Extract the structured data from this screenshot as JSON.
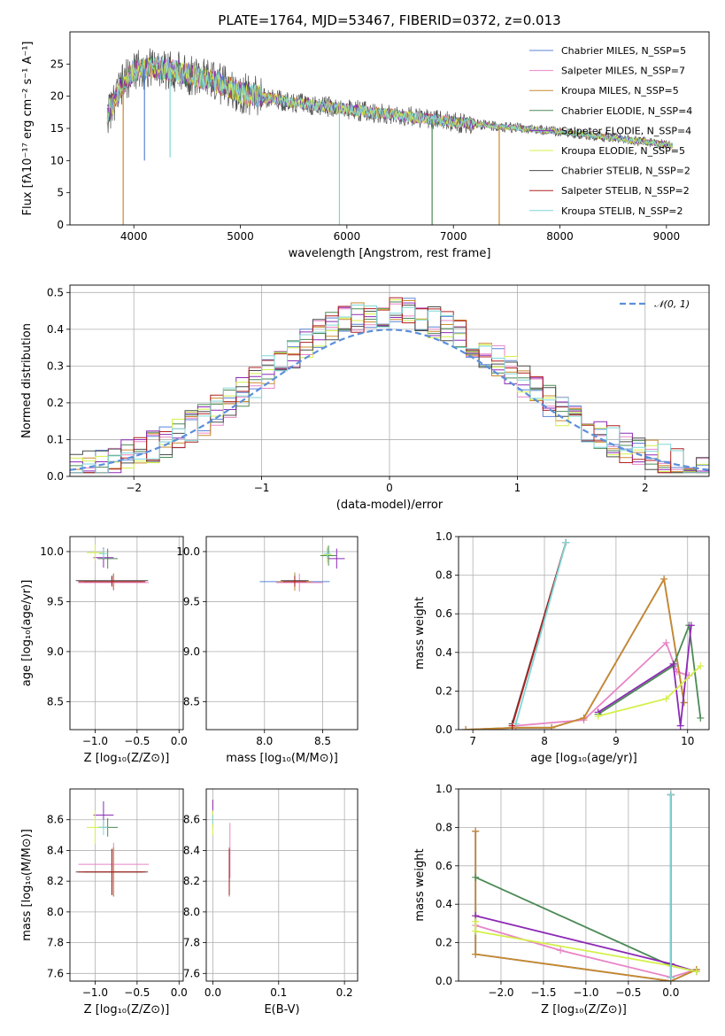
{
  "title": "PLATE=1764, MJD=53467, FIBERID=0372, z=0.013",
  "series_colors": [
    "#5b83d6",
    "#e885c7",
    "#c9892d",
    "#4c8a56",
    "#8d2ab5",
    "#d4f04a",
    "#4d4d4d",
    "#b02020",
    "#7fd6d6"
  ],
  "chart_data": [
    {
      "id": "spectrum",
      "type": "line",
      "xlabel": "wavelength [Angstrom, rest frame]",
      "ylabel": "Flux [fλ10⁻¹⁷ erg cm⁻² s⁻¹ A⁻¹]",
      "xlim": [
        3400,
        9400
      ],
      "ylim": [
        0,
        30
      ],
      "xticks": [
        4000,
        5000,
        6000,
        7000,
        8000,
        9000
      ],
      "yticks": [
        0,
        5,
        10,
        15,
        20,
        25
      ],
      "grid": false,
      "legend_position": "top-right",
      "series": [
        {
          "name": "Chabrier MILES, N_SSP=5"
        },
        {
          "name": "Salpeter MILES, N_SSP=7"
        },
        {
          "name": "Kroupa MILES, N_SSP=5"
        },
        {
          "name": "Chabrier ELODIE, N_SSP=4"
        },
        {
          "name": "Salpeter ELODIE, N_SSP=4"
        },
        {
          "name": "Kroupa ELODIE, N_SSP=5"
        },
        {
          "name": "Chabrier STELIB, N_SSP=2"
        },
        {
          "name": "Salpeter STELIB, N_SSP=2"
        },
        {
          "name": "Kroupa STELIB, N_SSP=2"
        }
      ],
      "continuum": {
        "x": [
          3750,
          3900,
          4000,
          4200,
          4500,
          4800,
          5000,
          5500,
          6000,
          6500,
          7000,
          7500,
          8000,
          8500,
          9000,
          9100
        ],
        "y": [
          17,
          22,
          24,
          24.5,
          23.5,
          22,
          20.5,
          19,
          18,
          17,
          16,
          15.2,
          14.5,
          13.5,
          12.5,
          12
        ]
      },
      "absorption_dips": [
        {
          "x": 3900,
          "y": 0
        },
        {
          "x": 4100,
          "y": 10
        },
        {
          "x": 4340,
          "y": 10.5
        },
        {
          "x": 5930,
          "y": 0
        },
        {
          "x": 6800,
          "y": 0
        },
        {
          "x": 7430,
          "y": 0
        }
      ]
    },
    {
      "id": "residuals",
      "type": "step-histogram",
      "xlabel": "(data-model)/error",
      "ylabel": "Normed distribution",
      "xlim": [
        -2.5,
        2.5
      ],
      "ylim": [
        0,
        0.52
      ],
      "xticks": [
        -2,
        -1,
        0,
        1,
        2
      ],
      "yticks": [
        0.0,
        0.1,
        0.2,
        0.3,
        0.4,
        0.5
      ],
      "grid": true,
      "legend_position": "top-right",
      "legend": "𝒩(0, 1)",
      "bins": {
        "start": -2.5,
        "width": 0.1
      }
    },
    {
      "id": "age-vs-Z",
      "type": "errorbar",
      "xlabel": "Z [log₁₀(Z/Z⊙)]",
      "ylabel": "age  [log₁₀(age/yr)]",
      "xlim": [
        -1.3,
        0.05
      ],
      "ylim": [
        8.22,
        10.15
      ],
      "xticks": [
        -1.0,
        -0.5,
        0.0
      ],
      "yticks": [
        8.5,
        9.0,
        9.5,
        10.0
      ],
      "grid": true,
      "points": [
        {
          "x": -0.78,
          "y": 9.7,
          "xerr": 0.35,
          "yerr": 0.08
        },
        {
          "x": -0.78,
          "y": 9.69,
          "xerr": 0.42,
          "yerr": 0.08
        },
        {
          "x": -0.78,
          "y": 9.7,
          "xerr": 0.35,
          "yerr": 0.08
        },
        {
          "x": -0.85,
          "y": 9.93,
          "xerr": 0.12,
          "yerr": 0.1
        },
        {
          "x": -0.9,
          "y": 9.94,
          "xerr": 0.12,
          "yerr": 0.1
        },
        {
          "x": -1.0,
          "y": 9.99,
          "xerr": 0.1,
          "yerr": 0.08
        },
        {
          "x": -0.8,
          "y": 9.71,
          "xerr": 0.43,
          "yerr": 0.05
        },
        {
          "x": -0.8,
          "y": 9.7,
          "xerr": 0.4,
          "yerr": 0.05
        },
        {
          "x": -0.9,
          "y": 9.98,
          "xerr": 0.05,
          "yerr": 0.05
        }
      ]
    },
    {
      "id": "age-vs-mass",
      "type": "errorbar",
      "xlabel": "mass [log₁₀(M/M⊙)]",
      "ylabel": "",
      "xlim": [
        7.5,
        8.8
      ],
      "ylim": [
        8.22,
        10.15
      ],
      "xticks": [
        8.0,
        8.5
      ],
      "yticks": [
        8.5,
        9.0,
        9.5,
        10.0
      ],
      "grid": true,
      "points": [
        {
          "x": 8.26,
          "y": 9.7,
          "xerr": 0.3,
          "yerr": 0.09
        },
        {
          "x": 8.3,
          "y": 9.69,
          "xerr": 0.2,
          "yerr": 0.09
        },
        {
          "x": 8.26,
          "y": 9.7,
          "xerr": 0.15,
          "yerr": 0.09
        },
        {
          "x": 8.55,
          "y": 9.96,
          "xerr": 0.07,
          "yerr": 0.1
        },
        {
          "x": 8.62,
          "y": 9.93,
          "xerr": 0.07,
          "yerr": 0.1
        },
        {
          "x": 8.54,
          "y": 9.97,
          "xerr": 0.04,
          "yerr": 0.08
        },
        {
          "x": 8.26,
          "y": 9.71,
          "xerr": 0.12,
          "yerr": 0.05
        },
        {
          "x": 8.26,
          "y": 9.7,
          "xerr": 0.1,
          "yerr": 0.05
        },
        {
          "x": 8.54,
          "y": 9.98,
          "xerr": 0.03,
          "yerr": 0.05
        }
      ]
    },
    {
      "id": "massweight-vs-age",
      "type": "line",
      "xlabel": "age  [log₁₀(age/yr)]",
      "ylabel": "mass weight",
      "xlim": [
        6.8,
        10.3
      ],
      "ylim": [
        0.0,
        1.0
      ],
      "xticks": [
        7,
        8,
        9,
        10
      ],
      "yticks": [
        0.0,
        0.2,
        0.4,
        0.6,
        0.8,
        1.0
      ],
      "grid": true,
      "series": [
        {
          "x": [
            6.9,
            7.6,
            8.1,
            8.55,
            9.67,
            9.95
          ],
          "y": [
            0.0,
            0.01,
            0.01,
            0.06,
            0.78,
            0.14
          ]
        },
        {
          "x": [
            7.6,
            8.55,
            9.7,
            9.85,
            10.02
          ],
          "y": [
            0.02,
            0.05,
            0.45,
            0.3,
            0.28
          ]
        },
        {
          "x": [
            6.9,
            7.6,
            8.1,
            8.55,
            9.67,
            9.95
          ],
          "y": [
            0.0,
            0.01,
            0.01,
            0.06,
            0.78,
            0.14
          ]
        },
        {
          "x": [
            8.75,
            9.8,
            10.02,
            10.18
          ],
          "y": [
            0.08,
            0.33,
            0.54,
            0.06
          ]
        },
        {
          "x": [
            8.75,
            9.8,
            9.9,
            10.05
          ],
          "y": [
            0.09,
            0.34,
            0.02,
            0.54
          ]
        },
        {
          "x": [
            8.75,
            9.7,
            10.18
          ],
          "y": [
            0.07,
            0.16,
            0.33
          ]
        },
        {
          "x": [
            7.55,
            8.3
          ],
          "y": [
            0.03,
            0.97
          ]
        },
        {
          "x": [
            7.55,
            8.3
          ],
          "y": [
            0.02,
            0.97
          ]
        },
        {
          "x": [
            7.6,
            8.3
          ],
          "y": [
            0.03,
            0.97
          ]
        }
      ]
    },
    {
      "id": "mass-vs-Z",
      "type": "errorbar",
      "xlabel": "Z [log₁₀(Z/Z⊙)]",
      "ylabel": "mass [log₁₀(M/M⊙)]",
      "xlim": [
        -1.3,
        0.05
      ],
      "ylim": [
        7.55,
        8.8
      ],
      "xticks": [
        -1.0,
        -0.5,
        0.0
      ],
      "yticks": [
        7.6,
        7.8,
        8.0,
        8.2,
        8.4,
        8.6
      ],
      "grid": true,
      "points": [
        {
          "x": -0.78,
          "y": 8.26,
          "xerr": 0.35,
          "yerr": 0.16
        },
        {
          "x": -0.78,
          "y": 8.31,
          "xerr": 0.42,
          "yerr": 0.14
        },
        {
          "x": -0.78,
          "y": 8.26,
          "xerr": 0.35,
          "yerr": 0.16
        },
        {
          "x": -0.85,
          "y": 8.55,
          "xerr": 0.12,
          "yerr": 0.06
        },
        {
          "x": -0.9,
          "y": 8.63,
          "xerr": 0.12,
          "yerr": 0.09
        },
        {
          "x": -1.0,
          "y": 8.55,
          "xerr": 0.1,
          "yerr": 0.11
        },
        {
          "x": -0.8,
          "y": 8.26,
          "xerr": 0.43,
          "yerr": 0.15
        },
        {
          "x": -0.8,
          "y": 8.26,
          "xerr": 0.4,
          "yerr": 0.15
        },
        {
          "x": -0.9,
          "y": 8.55,
          "xerr": 0.05,
          "yerr": 0.05
        }
      ]
    },
    {
      "id": "mass-vs-ebv",
      "type": "errorbar",
      "xlabel": "E(B-V)",
      "ylabel": "",
      "xlim": [
        -0.01,
        0.22
      ],
      "ylim": [
        7.55,
        8.8
      ],
      "xticks": [
        0.0,
        0.1,
        0.2
      ],
      "yticks": [
        7.6,
        7.8,
        8.0,
        8.2,
        8.4,
        8.6
      ],
      "grid": true,
      "points": [
        {
          "x": 0.025,
          "y": 8.26,
          "xerr": 0.0,
          "yerr": 0.16
        },
        {
          "x": 0.026,
          "y": 8.4,
          "xerr": 0.0,
          "yerr": 0.18
        },
        {
          "x": 0.025,
          "y": 8.26,
          "xerr": 0.0,
          "yerr": 0.16
        },
        {
          "x": 0.0,
          "y": 8.6,
          "xerr": 0.0,
          "yerr": 0.06
        },
        {
          "x": 0.0,
          "y": 8.67,
          "xerr": 0.0,
          "yerr": 0.06
        },
        {
          "x": 0.0,
          "y": 8.58,
          "xerr": 0.0,
          "yerr": 0.08
        },
        {
          "x": 0.025,
          "y": 8.26,
          "xerr": 0.0,
          "yerr": 0.15
        },
        {
          "x": 0.025,
          "y": 8.26,
          "xerr": 0.0,
          "yerr": 0.15
        },
        {
          "x": 0.0,
          "y": 8.6,
          "xerr": 0.0,
          "yerr": 0.03
        }
      ]
    },
    {
      "id": "massweight-vs-Z",
      "type": "line",
      "xlabel": "Z [log₁₀(Z/Z⊙)]",
      "ylabel": "mass weight",
      "xlim": [
        -2.5,
        0.45
      ],
      "ylim": [
        0.0,
        1.0
      ],
      "xticks": [
        -2.0,
        -1.5,
        -1.0,
        -0.5,
        0.0
      ],
      "yticks": [
        0.0,
        0.2,
        0.4,
        0.6,
        0.8,
        1.0
      ],
      "grid": true,
      "series": [
        {
          "x": [
            -2.3,
            -2.3,
            0.0,
            0.3
          ],
          "y": [
            0.78,
            0.14,
            0.0,
            0.06
          ]
        },
        {
          "x": [
            -2.3,
            -1.3,
            0.0,
            0.3
          ],
          "y": [
            0.29,
            0.16,
            0.02,
            0.06
          ]
        },
        {
          "x": [
            -2.3,
            -2.3,
            0.0,
            0.3
          ],
          "y": [
            0.78,
            0.14,
            0.0,
            0.06
          ]
        },
        {
          "x": [
            -2.3,
            0.0,
            0.3
          ],
          "y": [
            0.54,
            0.08,
            0.05
          ]
        },
        {
          "x": [
            -2.3,
            0.0,
            0.3
          ],
          "y": [
            0.34,
            0.09,
            0.05
          ]
        },
        {
          "x": [
            -2.3,
            -2.3,
            0.0,
            0.3
          ],
          "y": [
            0.31,
            0.26,
            0.08,
            0.05
          ]
        },
        {
          "x": [
            0.0,
            0.0
          ],
          "y": [
            0.97,
            0.02
          ]
        },
        {
          "x": [
            0.0,
            0.0
          ],
          "y": [
            0.97,
            0.02
          ]
        },
        {
          "x": [
            0.0,
            0.0
          ],
          "y": [
            0.97,
            0.02
          ]
        }
      ]
    }
  ]
}
